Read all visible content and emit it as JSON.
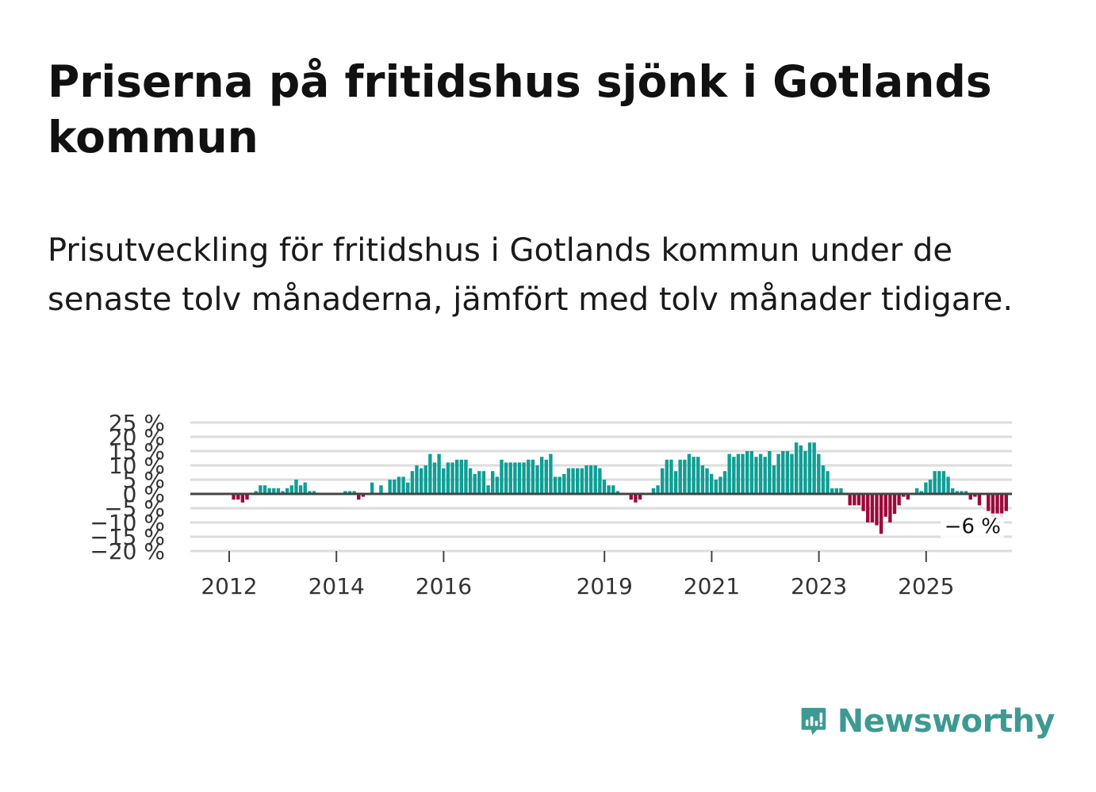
{
  "title": "Priserna på fritidshus sjönk i Gotlands kommun",
  "subtitle": "Prisutveckling för fritidshus i Gotlands kommun under de senaste tolv månaderna, jämfört med tolv månader tidigare.",
  "brand": {
    "name": "Newsworthy",
    "color": "#3d9a93",
    "icon": "newsworthy-bar-chart-icon"
  },
  "colors": {
    "positive": "#0f9e94",
    "negative": "#9b0a3b",
    "zero_line": "#444444",
    "grid": "#dddddd"
  },
  "chart_data": {
    "type": "bar",
    "title": "Prisutveckling för fritidshus i Gotlands kommun",
    "ylabel": "",
    "xlabel": "",
    "ylim": [
      -20,
      25
    ],
    "yticks": [
      -20,
      -15,
      -10,
      -5,
      0,
      5,
      10,
      15,
      20,
      25
    ],
    "ytick_labels": [
      "−20 %",
      "−15 %",
      "−10 %",
      "−5 %",
      "0 %",
      "5 %",
      "10 %",
      "15 %",
      "20 %",
      "25 %"
    ],
    "xticks": [
      2012,
      2014,
      2016,
      2019,
      2021,
      2023,
      2025
    ],
    "x_start": 2011.25,
    "x_step": 0.0833,
    "end_label": "−6 %",
    "values": [
      0,
      0,
      0,
      0,
      0,
      0,
      0,
      0,
      0,
      0,
      -2,
      -2,
      -3,
      -2,
      0,
      1,
      3,
      3,
      2,
      2,
      2,
      1,
      2,
      3,
      5,
      3,
      4,
      1,
      1,
      0,
      0,
      0,
      0,
      0,
      0,
      1,
      1,
      1,
      -2,
      -1,
      0,
      4,
      0,
      3,
      0,
      5,
      5,
      6,
      6,
      4,
      8,
      10,
      9,
      10,
      14,
      11,
      14,
      9,
      11,
      11,
      12,
      12,
      12,
      9,
      7,
      8,
      8,
      3,
      8,
      6,
      12,
      11,
      11,
      11,
      11,
      11,
      12,
      12,
      10,
      13,
      12,
      14,
      6,
      6,
      7,
      9,
      9,
      9,
      9,
      10,
      10,
      10,
      9,
      5,
      3,
      3,
      1,
      0,
      0,
      -2,
      -3,
      -2,
      0,
      0,
      2,
      3,
      9,
      12,
      12,
      8,
      12,
      12,
      14,
      13,
      13,
      10,
      9,
      7,
      5,
      6,
      8,
      14,
      13,
      14,
      14,
      15,
      15,
      13,
      14,
      13,
      15,
      10,
      14,
      15,
      15,
      14,
      18,
      17,
      15,
      18,
      18,
      14,
      10,
      8,
      2,
      2,
      2,
      0,
      -4,
      -4,
      -4,
      -6,
      -10,
      -10,
      -11,
      -14,
      -8,
      -10,
      -7,
      -4,
      -1,
      -2,
      0,
      2,
      1,
      4,
      5,
      8,
      8,
      8,
      6,
      2,
      1,
      1,
      1,
      -2,
      -1,
      -4,
      0,
      -6,
      -8,
      -7,
      -8,
      -6
    ]
  }
}
